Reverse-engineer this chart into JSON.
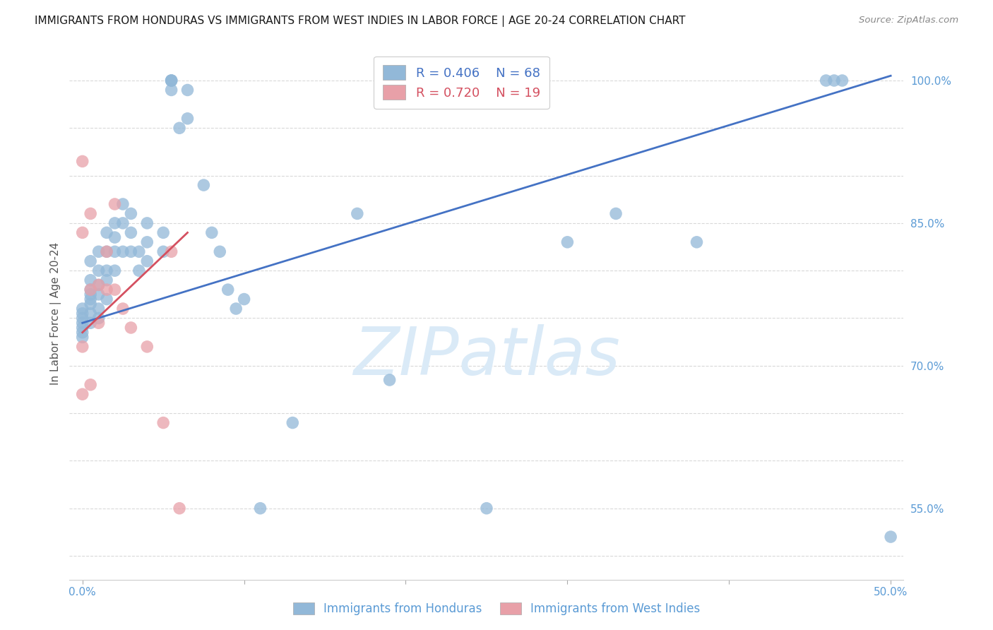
{
  "title": "IMMIGRANTS FROM HONDURAS VS IMMIGRANTS FROM WEST INDIES IN LABOR FORCE | AGE 20-24 CORRELATION CHART",
  "source": "Source: ZipAtlas.com",
  "ylabel": "In Labor Force | Age 20-24",
  "xlim": [
    -0.008,
    0.508
  ],
  "ylim": [
    0.475,
    1.035
  ],
  "xticks": [
    0.0,
    0.1,
    0.2,
    0.3,
    0.4,
    0.5
  ],
  "xticklabels": [
    "0.0%",
    "",
    "",
    "",
    "",
    "50.0%"
  ],
  "ytick_vals": [
    0.5,
    0.55,
    0.6,
    0.65,
    0.7,
    0.75,
    0.8,
    0.85,
    0.9,
    0.95,
    1.0
  ],
  "ytick_labels": [
    "",
    "55.0%",
    "",
    "",
    "70.0%",
    "",
    "",
    "85.0%",
    "",
    "",
    "100.0%"
  ],
  "legend_R1": "R = 0.406",
  "legend_N1": "N = 68",
  "legend_R2": "R = 0.720",
  "legend_N2": "N = 19",
  "blue_color": "#92b8d8",
  "pink_color": "#e8a0a8",
  "line_blue": "#4472c4",
  "line_pink": "#d45060",
  "axis_tick_color": "#5b9bd5",
  "watermark_text": "ZIPatlas",
  "watermark_color": "#daeaf7",
  "background_color": "#ffffff",
  "grid_color": "#d0d0d0",
  "title_color": "#1a1a1a",
  "source_color": "#888888",
  "honduras_x": [
    0.0,
    0.0,
    0.0,
    0.0,
    0.0,
    0.0,
    0.0,
    0.005,
    0.005,
    0.005,
    0.005,
    0.005,
    0.005,
    0.005,
    0.005,
    0.01,
    0.01,
    0.01,
    0.01,
    0.01,
    0.01,
    0.015,
    0.015,
    0.015,
    0.015,
    0.015,
    0.02,
    0.02,
    0.02,
    0.02,
    0.025,
    0.025,
    0.025,
    0.03,
    0.03,
    0.03,
    0.035,
    0.035,
    0.04,
    0.04,
    0.04,
    0.05,
    0.05,
    0.055,
    0.055,
    0.055,
    0.055,
    0.06,
    0.065,
    0.065,
    0.075,
    0.08,
    0.085,
    0.09,
    0.095,
    0.1,
    0.11,
    0.13,
    0.17,
    0.19,
    0.25,
    0.3,
    0.33,
    0.38,
    0.46,
    0.465,
    0.47,
    0.5
  ],
  "honduras_y": [
    0.76,
    0.755,
    0.75,
    0.745,
    0.74,
    0.735,
    0.73,
    0.81,
    0.79,
    0.78,
    0.775,
    0.77,
    0.765,
    0.755,
    0.745,
    0.82,
    0.8,
    0.785,
    0.775,
    0.76,
    0.75,
    0.84,
    0.82,
    0.8,
    0.79,
    0.77,
    0.85,
    0.835,
    0.82,
    0.8,
    0.87,
    0.85,
    0.82,
    0.86,
    0.84,
    0.82,
    0.82,
    0.8,
    0.85,
    0.83,
    0.81,
    0.84,
    0.82,
    1.0,
    1.0,
    1.0,
    0.99,
    0.95,
    0.99,
    0.96,
    0.89,
    0.84,
    0.82,
    0.78,
    0.76,
    0.77,
    0.55,
    0.64,
    0.86,
    0.685,
    0.55,
    0.83,
    0.86,
    0.83,
    1.0,
    1.0,
    1.0,
    0.52
  ],
  "westindies_x": [
    0.0,
    0.0,
    0.0,
    0.0,
    0.005,
    0.005,
    0.005,
    0.01,
    0.01,
    0.015,
    0.015,
    0.02,
    0.02,
    0.025,
    0.03,
    0.04,
    0.05,
    0.055,
    0.06
  ],
  "westindies_y": [
    0.915,
    0.84,
    0.72,
    0.67,
    0.86,
    0.78,
    0.68,
    0.785,
    0.745,
    0.82,
    0.78,
    0.87,
    0.78,
    0.76,
    0.74,
    0.72,
    0.64,
    0.82,
    0.55
  ],
  "blue_line_x": [
    0.0,
    0.5
  ],
  "blue_line_y": [
    0.745,
    1.005
  ],
  "pink_line_x": [
    0.0,
    0.065
  ],
  "pink_line_y": [
    0.735,
    0.84
  ]
}
